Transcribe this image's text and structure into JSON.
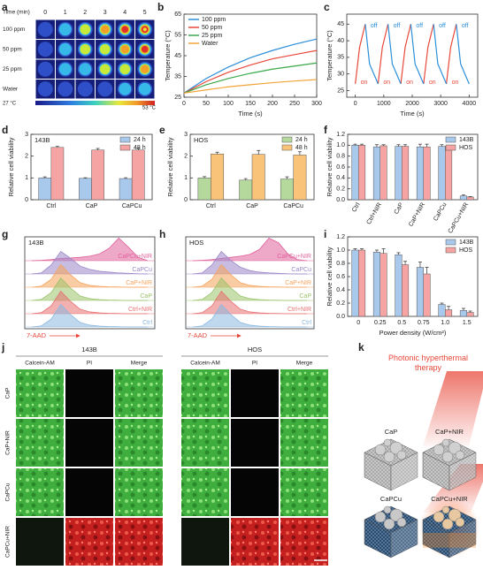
{
  "panel_labels": [
    "a",
    "b",
    "c",
    "d",
    "e",
    "f",
    "g",
    "h",
    "i",
    "j",
    "k"
  ],
  "thermal_images": {
    "time_label": "Time (min)",
    "times": [
      0,
      1,
      2,
      3,
      4,
      5
    ],
    "rows": [
      "100 ppm",
      "50 ppm",
      "25 ppm",
      "Water"
    ],
    "colorbar_min": "27 °C",
    "colorbar_max": "53 °C"
  },
  "live_dead": {
    "groups": [
      "143B",
      "HOS"
    ],
    "stains": [
      "Calcein-AM",
      "PI",
      "Merge"
    ],
    "rows": [
      "CaP",
      "CaP+NIR",
      "CaPCu",
      "CaPCu+NIR"
    ]
  },
  "schematic": {
    "title": "Photonic hyperthermal therapy",
    "samples": [
      "CaP",
      "CaP+NIR",
      "CaPCu",
      "CaPCu+NIR"
    ]
  },
  "chart_data": [
    {
      "type": "line",
      "xlabel": "Time (s)",
      "ylabel": "Temperature (°C)",
      "x": [
        0,
        50,
        100,
        150,
        200,
        250,
        300
      ],
      "xlim": [
        0,
        300
      ],
      "xticks": [
        0,
        50,
        100,
        150,
        200,
        250,
        300
      ],
      "ylim": [
        25,
        65
      ],
      "yticks": [
        25,
        35,
        45,
        55,
        65
      ],
      "legend": "upper left",
      "series": [
        {
          "name": "100 ppm",
          "color": "#2b8fd8",
          "values": [
            27,
            34,
            39.5,
            44,
            47.5,
            50.5,
            53
          ]
        },
        {
          "name": "50 ppm",
          "color": "#e8483a",
          "values": [
            27,
            32.5,
            37,
            40.5,
            43.5,
            45.5,
            47.5
          ]
        },
        {
          "name": "25 ppm",
          "color": "#3aa84a",
          "values": [
            27,
            31,
            34,
            36.5,
            38.5,
            40,
            41.5
          ]
        },
        {
          "name": "Water",
          "color": "#f2a33a",
          "values": [
            27,
            28.5,
            30,
            31,
            32,
            32.8,
            33.5
          ]
        }
      ]
    },
    {
      "type": "line",
      "xlabel": "Time (s)",
      "ylabel": "Temperature (°C)",
      "xlim": [
        -300,
        4300
      ],
      "xticks": [
        0,
        1000,
        2000,
        3000,
        4000
      ],
      "ylim": [
        23,
        48
      ],
      "yticks": [
        25,
        30,
        35,
        40,
        45
      ],
      "on_labels": [
        "on",
        "on",
        "on",
        "on",
        "on"
      ],
      "off_labels": [
        "off",
        "off",
        "off",
        "off",
        "off"
      ],
      "series": [
        {
          "color": "#e8483a",
          "x": [
            0,
            150,
            350,
            575,
            800,
            950,
            1150,
            1375,
            1600,
            1750,
            1950,
            2175,
            2400,
            2550,
            2750,
            2975,
            3200,
            3350,
            3550
          ],
          "values": [
            27,
            38,
            45,
            null,
            27,
            38,
            45,
            null,
            27,
            38,
            45,
            null,
            27,
            38,
            45,
            null,
            27,
            38,
            45
          ]
        },
        {
          "color": "#2b8fd8",
          "x": [
            350,
            500,
            800,
            975,
            1150,
            1300,
            1600,
            1775,
            1950,
            2100,
            2400,
            2575,
            2750,
            2900,
            3200,
            3375,
            3550,
            3700,
            4000
          ],
          "values": [
            45,
            33,
            27,
            null,
            45,
            33,
            27,
            null,
            45,
            33,
            27,
            null,
            45,
            33,
            27,
            null,
            45,
            33,
            27
          ]
        }
      ]
    },
    {
      "type": "bar",
      "label": "143B",
      "ylabel": "Relative cell viability",
      "categories": [
        "Ctrl",
        "CaP",
        "CaPCu"
      ],
      "ylim": [
        0,
        3
      ],
      "yticks": [
        0,
        1,
        2,
        3
      ],
      "legend": "upper right",
      "series": [
        {
          "name": "24 h",
          "color": "#a8c8ec",
          "values": [
            1.0,
            0.98,
            0.97
          ],
          "errors": [
            0.05,
            0.03,
            0.04
          ]
        },
        {
          "name": "48 h",
          "color": "#f5a3a3",
          "values": [
            2.4,
            2.28,
            2.28
          ],
          "errors": [
            0.05,
            0.07,
            0.08
          ]
        }
      ]
    },
    {
      "type": "bar",
      "label": "HOS",
      "ylabel": "Relative cell viability",
      "categories": [
        "Ctrl",
        "CaP",
        "CaPCu"
      ],
      "ylim": [
        0,
        3
      ],
      "yticks": [
        0,
        1,
        2,
        3
      ],
      "legend": "upper right",
      "series": [
        {
          "name": "24 h",
          "color": "#b5d99c",
          "values": [
            1.0,
            0.9,
            0.95
          ],
          "errors": [
            0.06,
            0.07,
            0.1
          ]
        },
        {
          "name": "48 h",
          "color": "#f9c37a",
          "values": [
            2.1,
            2.08,
            2.05
          ],
          "errors": [
            0.08,
            0.18,
            0.15
          ]
        }
      ]
    },
    {
      "type": "bar",
      "ylabel": "Relative cell viability",
      "categories": [
        "Ctrl",
        "Ctrl+NIR",
        "CaP",
        "CaP+NIR",
        "CaPCu",
        "CaPCu+NIR"
      ],
      "rotate_categories": true,
      "ylim": [
        0,
        1.2
      ],
      "yticks": [
        {
          "value": 0,
          "label": "0.0"
        },
        0.2,
        0.4,
        0.6,
        0.8,
        {
          "value": 1,
          "label": "1.0"
        },
        1.2
      ],
      "legend": "upper right",
      "series": [
        {
          "name": "143B",
          "color": "#a8c8ec",
          "values": [
            1.0,
            0.97,
            0.98,
            0.97,
            0.98,
            0.07
          ],
          "errors": [
            0.02,
            0.04,
            0.03,
            0.05,
            0.03,
            0.02
          ]
        },
        {
          "name": "HOS",
          "color": "#f5a3a3",
          "values": [
            1.0,
            0.99,
            0.98,
            0.97,
            0.98,
            0.05
          ],
          "errors": [
            0.02,
            0.02,
            0.03,
            0.05,
            0.02,
            0.01
          ]
        }
      ]
    },
    {
      "type": "ridgeline",
      "label": "143B",
      "xlabel": "7-AAD",
      "series": [
        {
          "name": "CaPCu+NIR",
          "color": "#e0609a",
          "values": [
            0,
            0.02,
            0.05,
            0.1,
            0.12,
            0.15,
            0.2,
            0.3,
            0.55,
            1,
            0.6,
            0.15,
            0
          ]
        },
        {
          "name": "CaPCu",
          "color": "#9b86c8",
          "values": [
            0,
            0.05,
            0.4,
            1,
            0.7,
            0.35,
            0.2,
            0.12,
            0.08,
            0.05,
            0.03,
            0.01,
            0
          ]
        },
        {
          "name": "CaP+NIR",
          "color": "#f5a25a",
          "values": [
            0,
            0.05,
            0.35,
            1,
            0.55,
            0.2,
            0.08,
            0.04,
            0.02,
            0.01,
            0,
            0,
            0
          ]
        },
        {
          "name": "CaP",
          "color": "#9bc36a",
          "values": [
            0,
            0.05,
            0.35,
            1,
            0.55,
            0.2,
            0.08,
            0.04,
            0.02,
            0.01,
            0,
            0,
            0
          ]
        },
        {
          "name": "Ctrl+NIR",
          "color": "#e87070",
          "values": [
            0,
            0.05,
            0.35,
            1,
            0.55,
            0.2,
            0.08,
            0.04,
            0.02,
            0.01,
            0,
            0,
            0
          ]
        },
        {
          "name": "Ctrl",
          "color": "#8ab8e0",
          "values": [
            0,
            0.05,
            0.35,
            1,
            0.55,
            0.2,
            0.08,
            0.04,
            0.02,
            0.01,
            0,
            0,
            0
          ]
        }
      ]
    },
    {
      "type": "ridgeline",
      "label": "HOS",
      "xlabel": "7-AAD",
      "series": [
        {
          "name": "CaPCu+NIR",
          "color": "#e0609a",
          "values": [
            0,
            0.02,
            0.05,
            0.1,
            0.15,
            0.2,
            0.28,
            0.5,
            1,
            0.8,
            0.3,
            0.05,
            0
          ]
        },
        {
          "name": "CaPCu",
          "color": "#9b86c8",
          "values": [
            0,
            0.05,
            0.4,
            1,
            0.6,
            0.3,
            0.15,
            0.08,
            0.05,
            0.03,
            0.01,
            0,
            0
          ]
        },
        {
          "name": "CaP+NIR",
          "color": "#f5a25a",
          "values": [
            0,
            0.05,
            0.35,
            1,
            0.55,
            0.2,
            0.08,
            0.04,
            0.02,
            0.01,
            0,
            0,
            0
          ]
        },
        {
          "name": "CaP",
          "color": "#9bc36a",
          "values": [
            0,
            0.05,
            0.35,
            1,
            0.55,
            0.2,
            0.08,
            0.04,
            0.02,
            0.01,
            0,
            0,
            0
          ]
        },
        {
          "name": "Ctrl+NIR",
          "color": "#e87070",
          "values": [
            0,
            0.05,
            0.35,
            1,
            0.55,
            0.2,
            0.08,
            0.04,
            0.02,
            0.01,
            0,
            0,
            0
          ]
        },
        {
          "name": "Ctrl",
          "color": "#8ab8e0",
          "values": [
            0,
            0.05,
            0.35,
            1,
            0.55,
            0.2,
            0.08,
            0.04,
            0.02,
            0.01,
            0,
            0,
            0
          ]
        }
      ]
    },
    {
      "type": "bar",
      "ylabel": "Relative cell viability",
      "xlabel": "Power density (W/cm²)",
      "categories": [
        "0",
        "0.25",
        "0.5",
        "0.75",
        "1.0",
        "1.5"
      ],
      "ylim": [
        0,
        1.2
      ],
      "yticks": [
        {
          "value": 0,
          "label": "0.0"
        },
        0.2,
        0.4,
        0.6,
        0.8,
        {
          "value": 1,
          "label": "1.0"
        },
        1.2
      ],
      "legend": "upper right",
      "series": [
        {
          "name": "143B",
          "color": "#a8c8ec",
          "values": [
            1.0,
            0.97,
            0.93,
            0.74,
            0.18,
            0.09
          ],
          "errors": [
            0.02,
            0.03,
            0.03,
            0.08,
            0.02,
            0.03
          ]
        },
        {
          "name": "HOS",
          "color": "#f5a3a3",
          "values": [
            1.0,
            0.95,
            0.78,
            0.64,
            0.1,
            0.06
          ],
          "errors": [
            0.02,
            0.07,
            0.05,
            0.1,
            0.05,
            0.02
          ]
        }
      ]
    }
  ]
}
